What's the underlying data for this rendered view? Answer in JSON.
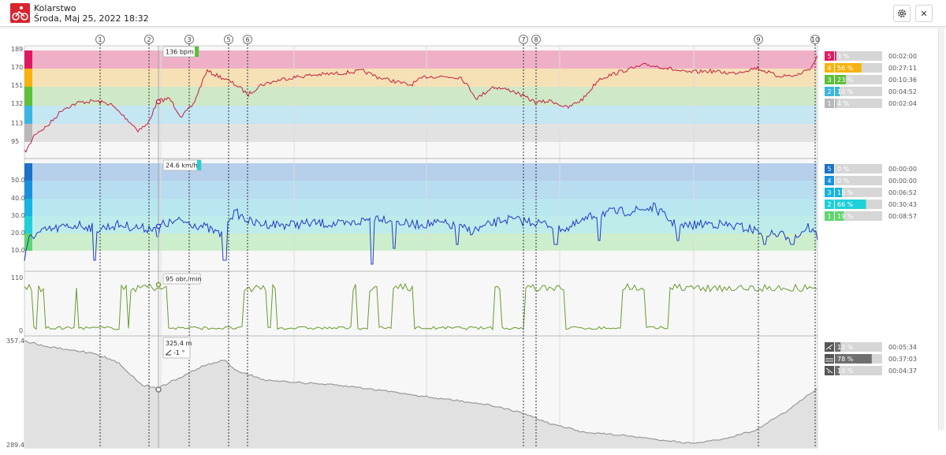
{
  "app": {
    "title": "Kolarstwo",
    "date": "Środa, Maj 25, 2022 18:32"
  },
  "toolbar": {
    "settings_icon": "gear-icon",
    "close_label": "✕"
  },
  "markers": [
    "1",
    "2",
    "3",
    "5",
    "6",
    "7",
    "8",
    "9",
    "10"
  ],
  "hr": {
    "ticks": [
      "189",
      "170",
      "151",
      "132",
      "113",
      "95"
    ],
    "tooltip": "136 bpm",
    "zones": [
      {
        "num": "5",
        "pct": "3 %",
        "time": "00:02:00",
        "color": "#e01a62",
        "fraction": 0.03
      },
      {
        "num": "4",
        "pct": "56 %",
        "time": "00:27:11",
        "color": "#f6b30e",
        "fraction": 0.56
      },
      {
        "num": "3",
        "pct": "23 %",
        "time": "00:10:36",
        "color": "#5dbf3a",
        "fraction": 0.23
      },
      {
        "num": "2",
        "pct": "10 %",
        "time": "00:04:52",
        "color": "#3ab6e0",
        "fraction": 0.1
      },
      {
        "num": "1",
        "pct": "4 %",
        "time": "00:02:04",
        "color": "#b8b8b8",
        "fraction": 0.04
      }
    ]
  },
  "speed": {
    "ticks": [
      "50.0",
      "40.0",
      "30.0",
      "20.0",
      "10.0"
    ],
    "tooltip": "24.6 km/h",
    "zones": [
      {
        "num": "5",
        "pct": "0 %",
        "time": "00:00:00",
        "color": "#1b72c8",
        "fraction": 0.0
      },
      {
        "num": "4",
        "pct": "0 %",
        "time": "00:00:00",
        "color": "#1891dd",
        "fraction": 0.0
      },
      {
        "num": "3",
        "pct": "15 %",
        "time": "00:06:52",
        "color": "#17b4e3",
        "fraction": 0.15
      },
      {
        "num": "2",
        "pct": "66 %",
        "time": "00:30:43",
        "color": "#1fd0d9",
        "fraction": 0.66
      },
      {
        "num": "1",
        "pct": "19 %",
        "time": "00:08:57",
        "color": "#5ed66d",
        "fraction": 0.19
      }
    ]
  },
  "cadence": {
    "ticks": [
      "110",
      "0"
    ],
    "tooltip": "95 obr./min"
  },
  "elevation": {
    "ticks": [
      "357.4",
      "289.4"
    ],
    "tooltip": "325.4 m",
    "slope": "-1 °",
    "zones": [
      {
        "icon": "uphill-icon",
        "pct": "12 %",
        "time": "00:05:34",
        "fraction": 0.12
      },
      {
        "icon": "flat-icon",
        "pct": "78 %",
        "time": "00:37:03",
        "fraction": 0.78
      },
      {
        "icon": "downhill-icon",
        "pct": "10 %",
        "time": "00:04:37",
        "fraction": 0.1
      }
    ]
  }
}
